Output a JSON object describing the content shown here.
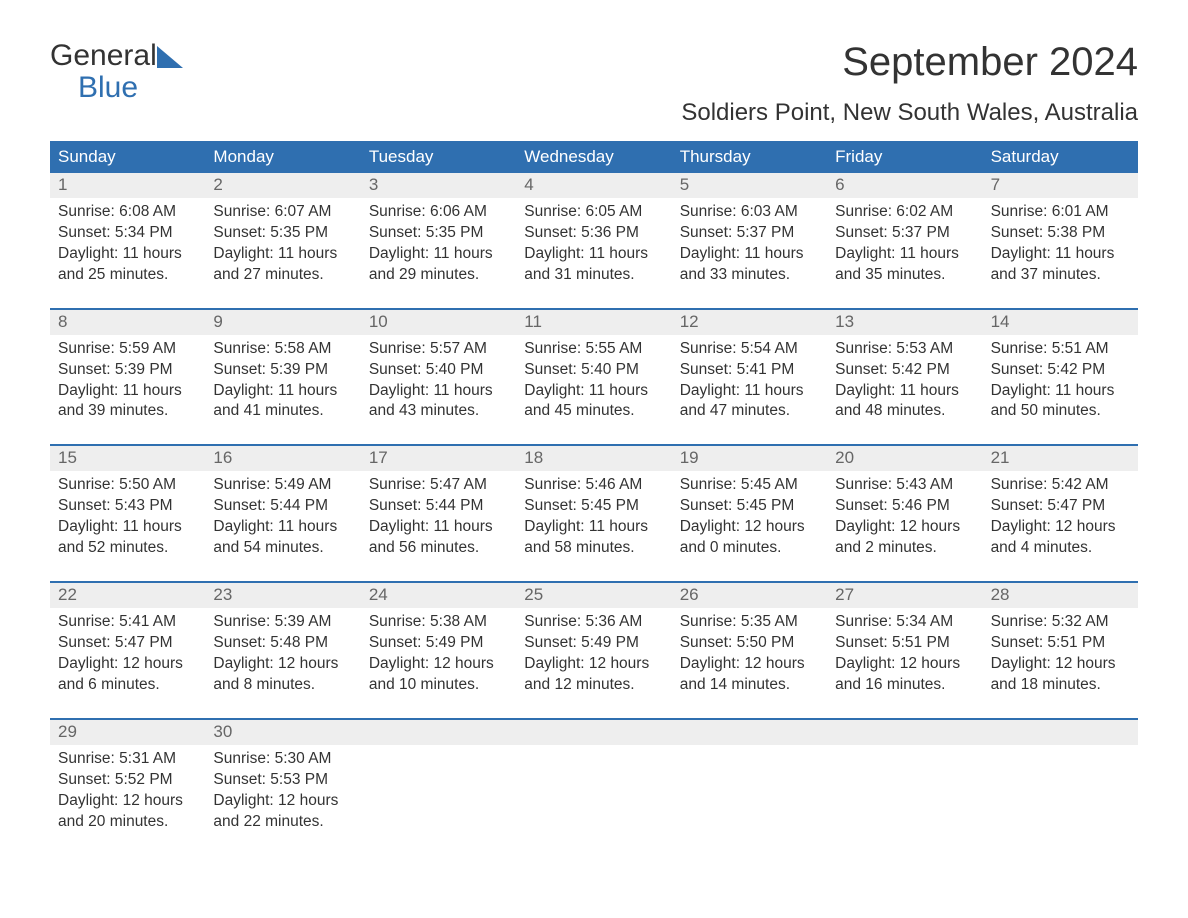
{
  "logo": {
    "line1": "General",
    "line2": "Blue"
  },
  "title": "September 2024",
  "location": "Soldiers Point, New South Wales, Australia",
  "colors": {
    "header_bg": "#2f6fb0",
    "header_text": "#ffffff",
    "daynum_bg": "#eeeeee",
    "daynum_text": "#666666",
    "body_text": "#333333",
    "week_border": "#2f6fb0",
    "background": "#ffffff"
  },
  "fonts": {
    "title_size_pt": 30,
    "location_size_pt": 18,
    "header_size_pt": 13,
    "body_size_pt": 11.5
  },
  "day_headers": [
    "Sunday",
    "Monday",
    "Tuesday",
    "Wednesday",
    "Thursday",
    "Friday",
    "Saturday"
  ],
  "weeks": [
    [
      {
        "num": "1",
        "sunrise": "Sunrise: 6:08 AM",
        "sunset": "Sunset: 5:34 PM",
        "day1": "Daylight: 11 hours",
        "day2": "and 25 minutes."
      },
      {
        "num": "2",
        "sunrise": "Sunrise: 6:07 AM",
        "sunset": "Sunset: 5:35 PM",
        "day1": "Daylight: 11 hours",
        "day2": "and 27 minutes."
      },
      {
        "num": "3",
        "sunrise": "Sunrise: 6:06 AM",
        "sunset": "Sunset: 5:35 PM",
        "day1": "Daylight: 11 hours",
        "day2": "and 29 minutes."
      },
      {
        "num": "4",
        "sunrise": "Sunrise: 6:05 AM",
        "sunset": "Sunset: 5:36 PM",
        "day1": "Daylight: 11 hours",
        "day2": "and 31 minutes."
      },
      {
        "num": "5",
        "sunrise": "Sunrise: 6:03 AM",
        "sunset": "Sunset: 5:37 PM",
        "day1": "Daylight: 11 hours",
        "day2": "and 33 minutes."
      },
      {
        "num": "6",
        "sunrise": "Sunrise: 6:02 AM",
        "sunset": "Sunset: 5:37 PM",
        "day1": "Daylight: 11 hours",
        "day2": "and 35 minutes."
      },
      {
        "num": "7",
        "sunrise": "Sunrise: 6:01 AM",
        "sunset": "Sunset: 5:38 PM",
        "day1": "Daylight: 11 hours",
        "day2": "and 37 minutes."
      }
    ],
    [
      {
        "num": "8",
        "sunrise": "Sunrise: 5:59 AM",
        "sunset": "Sunset: 5:39 PM",
        "day1": "Daylight: 11 hours",
        "day2": "and 39 minutes."
      },
      {
        "num": "9",
        "sunrise": "Sunrise: 5:58 AM",
        "sunset": "Sunset: 5:39 PM",
        "day1": "Daylight: 11 hours",
        "day2": "and 41 minutes."
      },
      {
        "num": "10",
        "sunrise": "Sunrise: 5:57 AM",
        "sunset": "Sunset: 5:40 PM",
        "day1": "Daylight: 11 hours",
        "day2": "and 43 minutes."
      },
      {
        "num": "11",
        "sunrise": "Sunrise: 5:55 AM",
        "sunset": "Sunset: 5:40 PM",
        "day1": "Daylight: 11 hours",
        "day2": "and 45 minutes."
      },
      {
        "num": "12",
        "sunrise": "Sunrise: 5:54 AM",
        "sunset": "Sunset: 5:41 PM",
        "day1": "Daylight: 11 hours",
        "day2": "and 47 minutes."
      },
      {
        "num": "13",
        "sunrise": "Sunrise: 5:53 AM",
        "sunset": "Sunset: 5:42 PM",
        "day1": "Daylight: 11 hours",
        "day2": "and 48 minutes."
      },
      {
        "num": "14",
        "sunrise": "Sunrise: 5:51 AM",
        "sunset": "Sunset: 5:42 PM",
        "day1": "Daylight: 11 hours",
        "day2": "and 50 minutes."
      }
    ],
    [
      {
        "num": "15",
        "sunrise": "Sunrise: 5:50 AM",
        "sunset": "Sunset: 5:43 PM",
        "day1": "Daylight: 11 hours",
        "day2": "and 52 minutes."
      },
      {
        "num": "16",
        "sunrise": "Sunrise: 5:49 AM",
        "sunset": "Sunset: 5:44 PM",
        "day1": "Daylight: 11 hours",
        "day2": "and 54 minutes."
      },
      {
        "num": "17",
        "sunrise": "Sunrise: 5:47 AM",
        "sunset": "Sunset: 5:44 PM",
        "day1": "Daylight: 11 hours",
        "day2": "and 56 minutes."
      },
      {
        "num": "18",
        "sunrise": "Sunrise: 5:46 AM",
        "sunset": "Sunset: 5:45 PM",
        "day1": "Daylight: 11 hours",
        "day2": "and 58 minutes."
      },
      {
        "num": "19",
        "sunrise": "Sunrise: 5:45 AM",
        "sunset": "Sunset: 5:45 PM",
        "day1": "Daylight: 12 hours",
        "day2": "and 0 minutes."
      },
      {
        "num": "20",
        "sunrise": "Sunrise: 5:43 AM",
        "sunset": "Sunset: 5:46 PM",
        "day1": "Daylight: 12 hours",
        "day2": "and 2 minutes."
      },
      {
        "num": "21",
        "sunrise": "Sunrise: 5:42 AM",
        "sunset": "Sunset: 5:47 PM",
        "day1": "Daylight: 12 hours",
        "day2": "and 4 minutes."
      }
    ],
    [
      {
        "num": "22",
        "sunrise": "Sunrise: 5:41 AM",
        "sunset": "Sunset: 5:47 PM",
        "day1": "Daylight: 12 hours",
        "day2": "and 6 minutes."
      },
      {
        "num": "23",
        "sunrise": "Sunrise: 5:39 AM",
        "sunset": "Sunset: 5:48 PM",
        "day1": "Daylight: 12 hours",
        "day2": "and 8 minutes."
      },
      {
        "num": "24",
        "sunrise": "Sunrise: 5:38 AM",
        "sunset": "Sunset: 5:49 PM",
        "day1": "Daylight: 12 hours",
        "day2": "and 10 minutes."
      },
      {
        "num": "25",
        "sunrise": "Sunrise: 5:36 AM",
        "sunset": "Sunset: 5:49 PM",
        "day1": "Daylight: 12 hours",
        "day2": "and 12 minutes."
      },
      {
        "num": "26",
        "sunrise": "Sunrise: 5:35 AM",
        "sunset": "Sunset: 5:50 PM",
        "day1": "Daylight: 12 hours",
        "day2": "and 14 minutes."
      },
      {
        "num": "27",
        "sunrise": "Sunrise: 5:34 AM",
        "sunset": "Sunset: 5:51 PM",
        "day1": "Daylight: 12 hours",
        "day2": "and 16 minutes."
      },
      {
        "num": "28",
        "sunrise": "Sunrise: 5:32 AM",
        "sunset": "Sunset: 5:51 PM",
        "day1": "Daylight: 12 hours",
        "day2": "and 18 minutes."
      }
    ],
    [
      {
        "num": "29",
        "sunrise": "Sunrise: 5:31 AM",
        "sunset": "Sunset: 5:52 PM",
        "day1": "Daylight: 12 hours",
        "day2": "and 20 minutes."
      },
      {
        "num": "30",
        "sunrise": "Sunrise: 5:30 AM",
        "sunset": "Sunset: 5:53 PM",
        "day1": "Daylight: 12 hours",
        "day2": "and 22 minutes."
      },
      null,
      null,
      null,
      null,
      null
    ]
  ]
}
